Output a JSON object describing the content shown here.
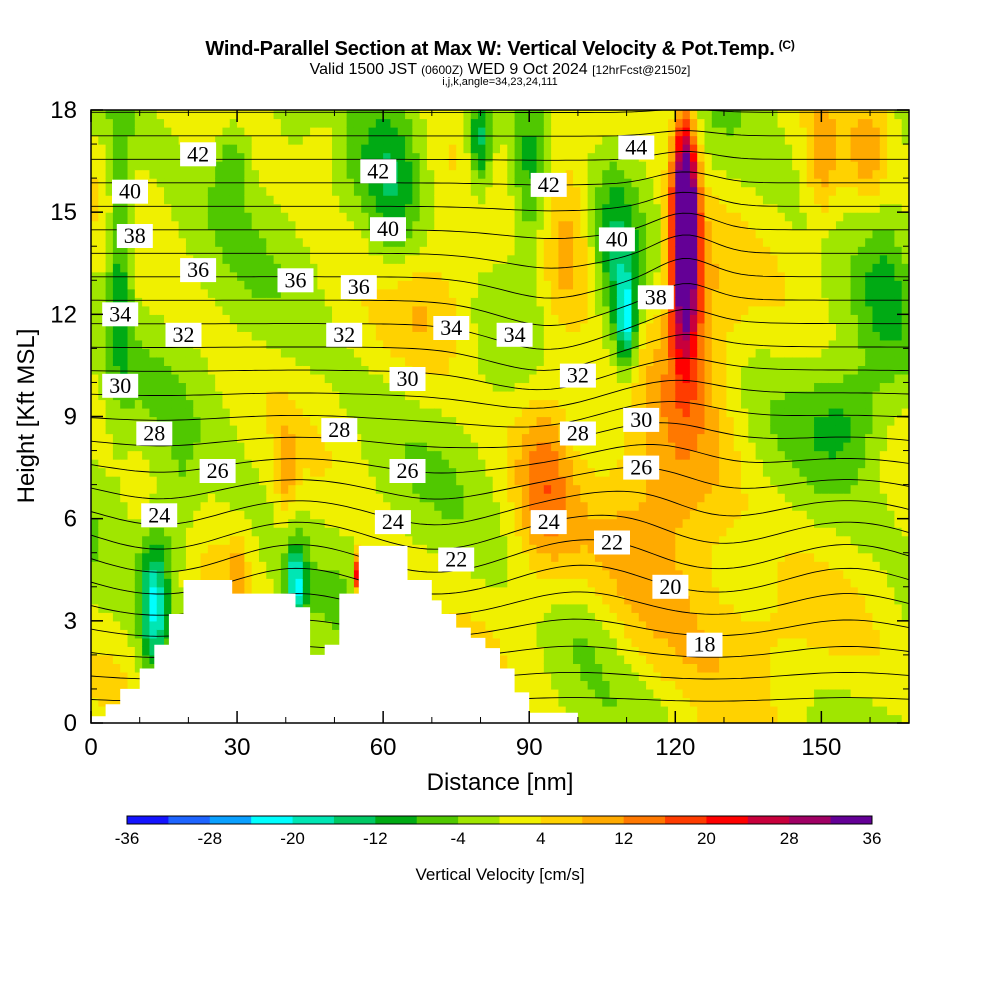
{
  "header": {
    "title": "Wind-Parallel Section at Max W: Vertical Velocity & Pot.Temp.",
    "copyright_mark": "(C)",
    "valid_prefix": "Valid 1500 JST",
    "valid_utc": "(0600Z)",
    "valid_date": "WED 9 Oct 2024",
    "forecast_info": "[12hrFcst@2150z]",
    "indices": "i,j,k,angle=34,23,24,111"
  },
  "chart_data": {
    "type": "heatmap",
    "title": "Wind-Parallel Section at Max W: Vertical Velocity & Pot.Temp.",
    "xlabel": "Distance [nm]",
    "ylabel": "Height [Kft MSL]",
    "xlim": [
      0,
      168
    ],
    "ylim": [
      0,
      18
    ],
    "x_ticks": [
      "0",
      "30",
      "60",
      "90",
      "120",
      "150"
    ],
    "y_ticks": [
      "0",
      "3",
      "6",
      "9",
      "12",
      "15",
      "18"
    ],
    "colorbar": {
      "title": "Vertical Velocity [cm/s]",
      "labels": [
        "-36",
        "-28",
        "-20",
        "-12",
        "-4",
        "4",
        "12",
        "20",
        "28",
        "36"
      ],
      "colors": [
        "#1414ff",
        "#1e64ff",
        "#0aa0ff",
        "#00ffff",
        "#00e6b4",
        "#00c864",
        "#00aa14",
        "#50c800",
        "#a0e600",
        "#f0f000",
        "#ffd200",
        "#ffaa00",
        "#ff7800",
        "#ff3c00",
        "#ff0000",
        "#c8003c",
        "#a00064",
        "#640096"
      ]
    },
    "terrain_x": [
      0,
      3,
      3,
      6,
      6,
      10,
      10,
      13,
      13,
      16,
      16,
      19,
      19,
      29,
      29,
      42,
      42,
      45,
      45,
      48,
      48,
      51,
      51,
      55,
      55,
      65,
      65,
      70,
      70,
      72,
      72,
      75,
      75,
      78,
      78,
      81,
      81,
      84,
      84,
      87,
      87,
      90,
      90,
      100,
      100
    ],
    "terrain_y": [
      0.2,
      0.2,
      0.55,
      0.55,
      1.0,
      1.0,
      1.6,
      1.6,
      2.3,
      2.3,
      3.2,
      3.2,
      4.2,
      4.2,
      3.8,
      3.8,
      3.4,
      3.4,
      2.0,
      2.0,
      2.3,
      2.3,
      3.8,
      3.8,
      5.2,
      5.2,
      4.2,
      4.2,
      3.6,
      3.6,
      3.2,
      3.2,
      2.8,
      2.8,
      2.5,
      2.5,
      2.2,
      2.2,
      1.6,
      1.6,
      0.9,
      0.9,
      0.3,
      0.3,
      0.0
    ],
    "wvel_cells": [
      {
        "x": 122,
        "y": 15.5,
        "w": 36,
        "sx": 2.5,
        "sy": 2.5
      },
      {
        "x": 122,
        "y": 13.0,
        "w": 26,
        "sx": 3.0,
        "sy": 2.6
      },
      {
        "x": 124,
        "y": 11.5,
        "w": 10,
        "sx": 8,
        "sy": 3.0
      },
      {
        "x": 110,
        "y": 11.8,
        "w": -20,
        "sx": 2.2,
        "sy": 1.4
      },
      {
        "x": 108,
        "y": 13.5,
        "w": -10,
        "sx": 4,
        "sy": 2.5
      },
      {
        "x": 80,
        "y": 17.0,
        "w": -16,
        "sx": 2.5,
        "sy": 1.5
      },
      {
        "x": 62,
        "y": 16.0,
        "w": -10,
        "sx": 6,
        "sy": 3.0
      },
      {
        "x": 90,
        "y": 16.0,
        "w": -10,
        "sx": 4,
        "sy": 2.5
      },
      {
        "x": 6,
        "y": 14.0,
        "w": -12,
        "sx": 2.5,
        "sy": 4.0
      },
      {
        "x": 29,
        "y": 16.5,
        "w": -8,
        "sx": 4,
        "sy": 1.5
      },
      {
        "x": 13,
        "y": 3.5,
        "w": -20,
        "sx": 3,
        "sy": 2.0
      },
      {
        "x": 42,
        "y": 4.0,
        "w": -20,
        "sx": 2,
        "sy": 1.3
      },
      {
        "x": 55,
        "y": 4.4,
        "w": 26,
        "sx": 1.0,
        "sy": 0.6
      },
      {
        "x": 93,
        "y": 7.5,
        "w": 12,
        "sx": 6,
        "sy": 3.0
      },
      {
        "x": 118,
        "y": 5.5,
        "w": 12,
        "sx": 14,
        "sy": 3.5
      },
      {
        "x": 98,
        "y": 14.5,
        "w": 10,
        "sx": 5,
        "sy": 3.0
      },
      {
        "x": 40,
        "y": 7.2,
        "w": 9,
        "sx": 2,
        "sy": 1.5
      },
      {
        "x": 30,
        "y": 4.5,
        "w": 8,
        "sx": 2,
        "sy": 1.0
      },
      {
        "x": 155,
        "y": 9.0,
        "w": -8,
        "sx": 8,
        "sy": 1.6
      },
      {
        "x": 163,
        "y": 13.0,
        "w": -6,
        "sx": 5,
        "sy": 3.0
      },
      {
        "x": 150,
        "y": 16.5,
        "w": 8,
        "sx": 3,
        "sy": 2.0
      },
      {
        "x": 160,
        "y": 17.0,
        "w": 8,
        "sx": 4,
        "sy": 1.5
      },
      {
        "x": 18,
        "y": 6.0,
        "w": -6,
        "sx": 4,
        "sy": 2.0
      },
      {
        "x": 70,
        "y": 12.5,
        "w": 6,
        "sx": 10,
        "sy": 2.0
      },
      {
        "x": 135,
        "y": 2.5,
        "w": 6,
        "sx": 15,
        "sy": 2.0
      },
      {
        "x": 48,
        "y": 17.0,
        "w": 6,
        "sx": 4,
        "sy": 1.2
      },
      {
        "x": 102,
        "y": 3.0,
        "w": -3,
        "sx": 6,
        "sy": 1.5
      }
    ],
    "theta_levels": [
      18,
      19,
      20,
      21,
      22,
      23,
      24,
      25,
      26,
      27,
      28,
      29,
      30,
      31,
      32,
      33,
      34,
      35,
      36,
      37,
      38,
      39,
      40,
      41,
      42,
      43,
      44
    ],
    "theta_labels": [
      {
        "text": "42",
        "x": 22,
        "y": 16.7
      },
      {
        "text": "42",
        "x": 59,
        "y": 16.2
      },
      {
        "text": "42",
        "x": 94,
        "y": 15.8
      },
      {
        "text": "44",
        "x": 112,
        "y": 16.9
      },
      {
        "text": "40",
        "x": 8,
        "y": 15.6
      },
      {
        "text": "40",
        "x": 61,
        "y": 14.5
      },
      {
        "text": "40",
        "x": 108,
        "y": 14.2
      },
      {
        "text": "38",
        "x": 9,
        "y": 14.3
      },
      {
        "text": "38",
        "x": 116,
        "y": 12.5
      },
      {
        "text": "36",
        "x": 22,
        "y": 13.3
      },
      {
        "text": "36",
        "x": 42,
        "y": 13.0
      },
      {
        "text": "36",
        "x": 55,
        "y": 12.8
      },
      {
        "text": "34",
        "x": 6,
        "y": 12.0
      },
      {
        "text": "34",
        "x": 74,
        "y": 11.6
      },
      {
        "text": "34",
        "x": 87,
        "y": 11.4
      },
      {
        "text": "32",
        "x": 19,
        "y": 11.4
      },
      {
        "text": "32",
        "x": 52,
        "y": 11.4
      },
      {
        "text": "32",
        "x": 100,
        "y": 10.2
      },
      {
        "text": "30",
        "x": 6,
        "y": 9.9
      },
      {
        "text": "30",
        "x": 65,
        "y": 10.1
      },
      {
        "text": "30",
        "x": 113,
        "y": 8.9
      },
      {
        "text": "28",
        "x": 13,
        "y": 8.5
      },
      {
        "text": "28",
        "x": 51,
        "y": 8.6
      },
      {
        "text": "28",
        "x": 100,
        "y": 8.5
      },
      {
        "text": "26",
        "x": 26,
        "y": 7.4
      },
      {
        "text": "26",
        "x": 65,
        "y": 7.4
      },
      {
        "text": "26",
        "x": 113,
        "y": 7.5
      },
      {
        "text": "24",
        "x": 14,
        "y": 6.1
      },
      {
        "text": "24",
        "x": 62,
        "y": 5.9
      },
      {
        "text": "24",
        "x": 94,
        "y": 5.9
      },
      {
        "text": "22",
        "x": 75,
        "y": 4.8
      },
      {
        "text": "22",
        "x": 107,
        "y": 5.3
      },
      {
        "text": "20",
        "x": 119,
        "y": 4.0
      },
      {
        "text": "18",
        "x": 126,
        "y": 2.3
      }
    ]
  }
}
